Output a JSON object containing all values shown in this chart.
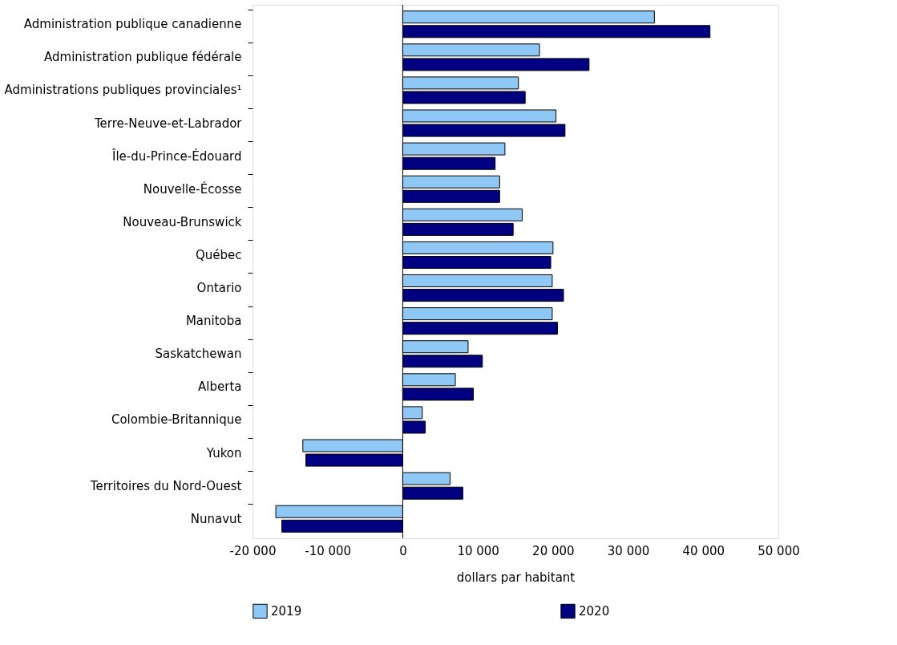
{
  "chart_data": {
    "type": "bar",
    "orientation": "horizontal",
    "xlabel": "dollars par habitant",
    "categories": [
      "Administration publique canadienne",
      "Administration publique fédérale",
      "Administrations publiques provinciales¹",
      "Terre-Neuve-et-Labrador",
      "Île-du-Prince-Édouard",
      "Nouvelle-Écosse",
      "Nouveau-Brunswick",
      "Québec",
      "Ontario",
      "Manitoba",
      "Saskatchewan",
      "Alberta",
      "Colombie-Britannique",
      "Yukon",
      "Territoires du Nord-Ouest",
      "Nunavut"
    ],
    "series": [
      {
        "name": "2019",
        "color": "#8fc8f5",
        "values": [
          33500,
          18200,
          15400,
          20400,
          13600,
          12900,
          15900,
          20000,
          19900,
          19900,
          8700,
          7000,
          2600,
          -13300,
          6300,
          -16900
        ]
      },
      {
        "name": "2020",
        "color": "#000080",
        "values": [
          40900,
          24800,
          16300,
          21600,
          12300,
          12900,
          14700,
          19700,
          21400,
          20600,
          10600,
          9400,
          3000,
          -12900,
          8000,
          -16100
        ]
      }
    ],
    "xlim": [
      -20000,
      50000
    ],
    "xticks": [
      {
        "value": -20000,
        "label": "-20 000"
      },
      {
        "value": -10000,
        "label": "-10 000"
      },
      0,
      {
        "value": 10000,
        "label": "10 000"
      },
      {
        "value": 20000,
        "label": "20 000"
      },
      {
        "value": 30000,
        "label": "30 000"
      },
      {
        "value": 40000,
        "label": "40 000"
      },
      {
        "value": 50000,
        "label": "50 000"
      }
    ],
    "ref_lines": [
      {
        "axis": "x",
        "value": 0,
        "color": "#000000"
      }
    ],
    "grid": false,
    "legend": "bottom"
  }
}
